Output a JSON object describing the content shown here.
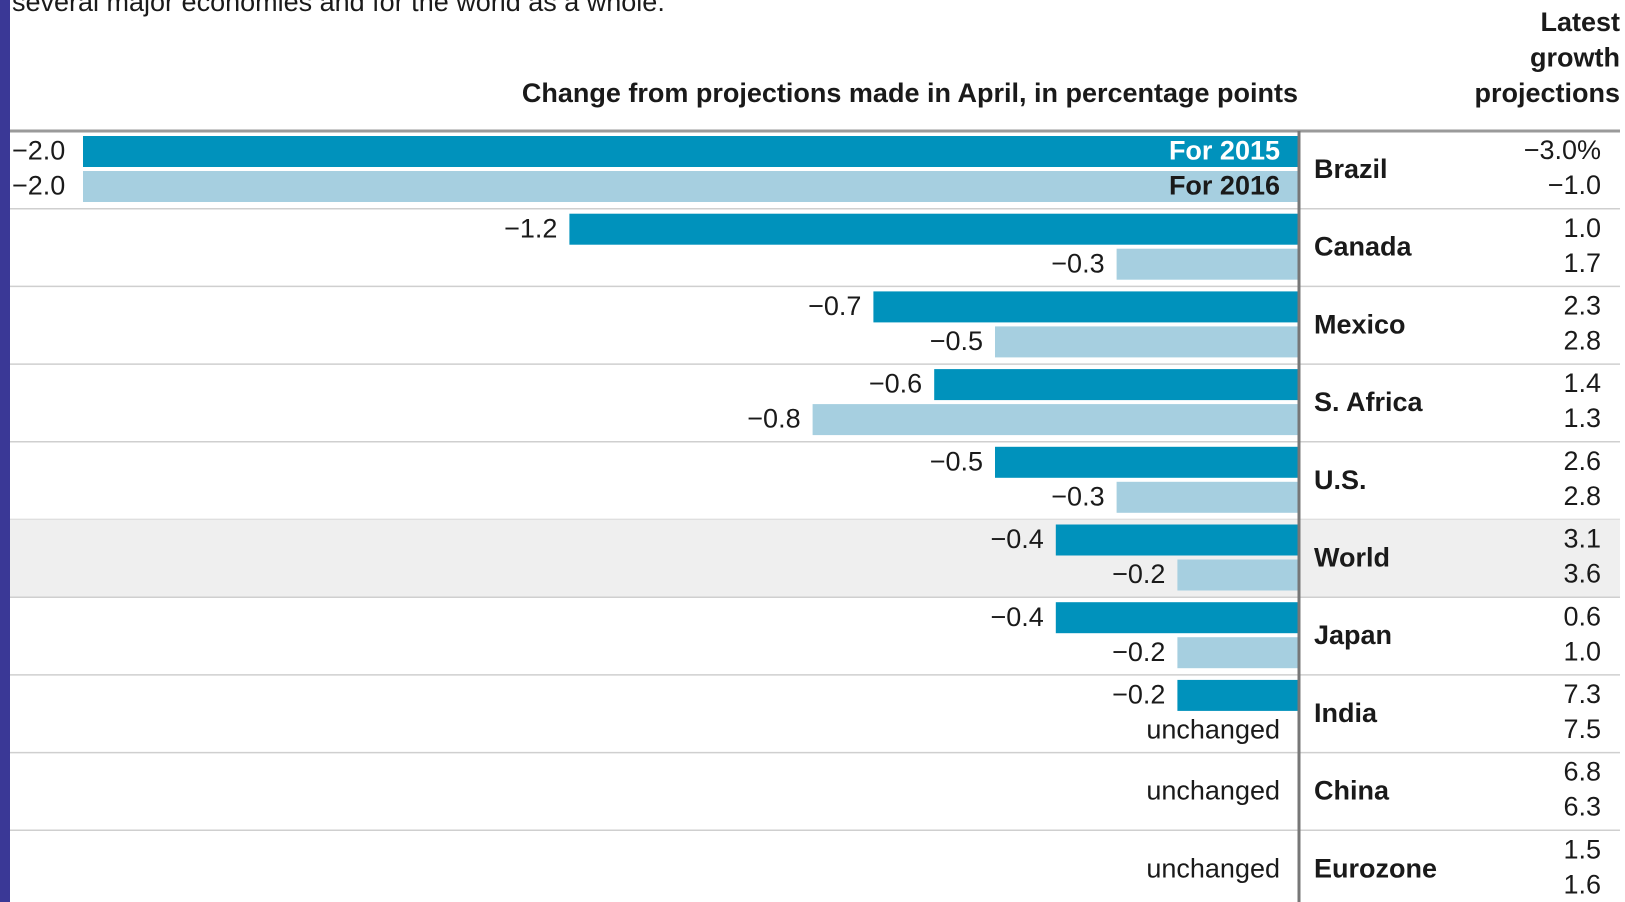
{
  "chart_data": {
    "type": "bar",
    "orientation": "horizontal",
    "subtitle": "several major economies and for the world as a whole.",
    "title": "Change from projections made in April, in percentage points",
    "categories": [
      "Brazil",
      "Canada",
      "Mexico",
      "S. Africa",
      "U.S.",
      "World",
      "Japan",
      "India",
      "China",
      "Eurozone"
    ],
    "highlight": "World",
    "xlim": [
      -2.0,
      0
    ],
    "series": [
      {
        "name": "For 2015",
        "color": "#0092bc",
        "values": [
          -2.0,
          -1.2,
          -0.7,
          -0.6,
          -0.5,
          -0.4,
          -0.4,
          -0.2,
          0,
          0
        ],
        "value_labels": [
          "−2.0",
          "−1.2",
          "−0.7",
          "−0.6",
          "−0.5",
          "−0.4",
          "−0.4",
          "−0.2",
          "unchanged",
          "unchanged"
        ]
      },
      {
        "name": "For 2016",
        "color": "#a6cfe0",
        "values": [
          -2.0,
          -0.3,
          -0.5,
          -0.8,
          -0.3,
          -0.2,
          -0.2,
          0,
          0,
          0
        ],
        "value_labels": [
          "−2.0",
          "−0.3",
          "−0.5",
          "−0.8",
          "−0.3",
          "−0.2",
          "−0.2",
          "unchanged",
          null,
          null
        ]
      }
    ],
    "latest": {
      "title_lines": [
        "Latest",
        "growth",
        "projections"
      ],
      "values_2015": [
        "−3.0%",
        "1.0",
        "2.3",
        "1.4",
        "2.6",
        "3.1",
        "0.6",
        "7.3",
        "6.8",
        "1.5"
      ],
      "values_2016": [
        "−1.0",
        "1.7",
        "2.8",
        "1.3",
        "2.8",
        "3.6",
        "1.0",
        "7.5",
        "6.3",
        "1.6"
      ]
    }
  }
}
